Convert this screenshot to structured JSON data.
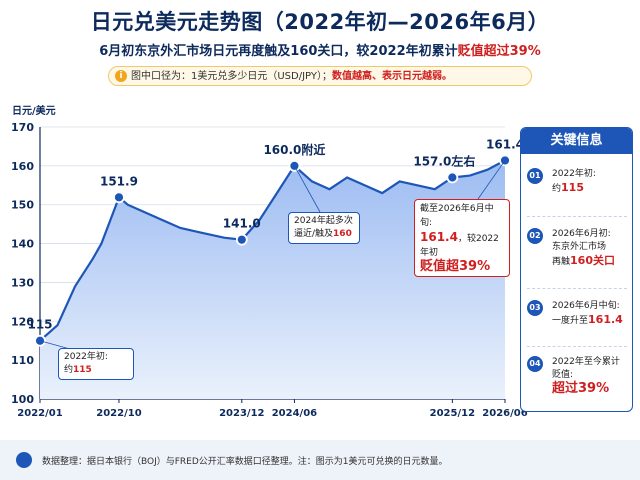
{
  "header": {
    "title": "日元兑美元走势图（2022年初—2026年6月）",
    "subtitle_pre": "6月初东京外汇市场日元再度触及160关口，较2022年初累计",
    "subtitle_hl": "贬值超过39%"
  },
  "note": {
    "icon": "i",
    "text": "图中口径为：1美元兑多少日元（USD/JPY）；",
    "highlight": "数值越高、表示日元越弱。"
  },
  "ylabel": "日元/美元",
  "colors": {
    "line": "#1e56b8",
    "accent": "#d01f1f",
    "fill_top": "#9dbcf2",
    "fill_bottom": "#eaf1fc"
  },
  "chart_data": {
    "type": "area",
    "title": "日元兑美元走势图（2022年初—2026年6月）",
    "ylabel": "日元/美元",
    "ylim": [
      100,
      170
    ],
    "yticks": [
      "100",
      "110",
      "120",
      "130",
      "140",
      "150",
      "160",
      "170"
    ],
    "xticks": [
      "2022/01",
      "2022/10",
      "2023/12",
      "2024/06",
      "2025/12",
      "2026/06"
    ],
    "grid": true,
    "series": [
      {
        "x": [
          "2022/01",
          "2022/03",
          "2022/05",
          "2022/07",
          "2022/08",
          "2022/10",
          "2022/11",
          "2023/01",
          "2023/03",
          "2023/05",
          "2023/07",
          "2023/09",
          "2023/10",
          "2023/12",
          "2024/02",
          "2024/04",
          "2024/06",
          "2024/08",
          "2024/10",
          "2024/12",
          "2025/02",
          "2025/04",
          "2025/06",
          "2025/08",
          "2025/10",
          "2025/12",
          "2026/02",
          "2026/04",
          "2026/06"
        ],
        "values": [
          115,
          119,
          129,
          136,
          140,
          151.9,
          150,
          148,
          146,
          144,
          143,
          142,
          141.5,
          141,
          146,
          153,
          160,
          156,
          154,
          157,
          155,
          153,
          156,
          155,
          154,
          157,
          157.5,
          159,
          161.4
        ]
      }
    ],
    "points": [
      {
        "x": "2022/01",
        "y": 115,
        "label": "115"
      },
      {
        "x": "2022/10",
        "y": 151.9,
        "label": "151.9"
      },
      {
        "x": "2023/12",
        "y": 141.0,
        "label": "141.0"
      },
      {
        "x": "2024/06",
        "y": 160.0,
        "label": "160.0附近"
      },
      {
        "x": "2025/12",
        "y": 157.0,
        "label": "157.0左右"
      },
      {
        "x": "2026/06",
        "y": 161.4,
        "label": "161.4"
      }
    ]
  },
  "callouts": {
    "start_l1": "2022年初:",
    "start_l2": "约",
    "start_val": "115",
    "mid_l1": "2024年起多次",
    "mid_l2": "逼近/触及",
    "mid_val": "160",
    "end_l1_a": "截至2026年6月中旬:",
    "end_val": "161.4",
    "end_l2": "，较2022年初",
    "end_l3": "贬值超39%"
  },
  "panel": {
    "title": "关键信息",
    "items": [
      {
        "num": "01",
        "l1": "2022年初:",
        "l2": "约",
        "hl": "115"
      },
      {
        "num": "02",
        "l1": "2026年6月初:",
        "l2": "东京外汇市场",
        "l3": "再触",
        "hl": "160关口"
      },
      {
        "num": "03",
        "l1": "2026年6月中旬:",
        "l2": "一度升至",
        "hl": "161.4"
      },
      {
        "num": "04",
        "l1": "2022年至今累计",
        "l2": "贬值:",
        "hl": "超过39%"
      }
    ]
  },
  "footer": {
    "text": "数据整理：据日本银行（BOJ）与FRED公开汇率数据口径整理。注：图示为1美元可兑换的日元数量。"
  }
}
